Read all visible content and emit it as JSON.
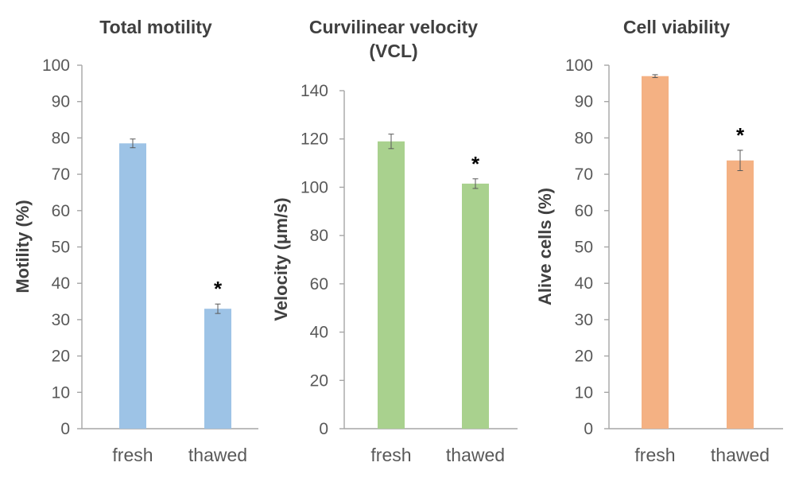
{
  "chart_data": [
    {
      "type": "bar",
      "title_lines": [
        "Total motility"
      ],
      "ylabel": "Motility (%)",
      "categories": [
        "fresh",
        "thawed"
      ],
      "values": [
        78.5,
        33.0
      ],
      "errors": [
        1.2,
        1.3
      ],
      "significance": [
        "",
        "*"
      ],
      "ylim": [
        0,
        100
      ],
      "yticks": [
        0,
        10,
        20,
        30,
        40,
        50,
        60,
        70,
        80,
        90,
        100
      ],
      "color": "#9dc3e6",
      "grid": false
    },
    {
      "type": "bar",
      "title_lines": [
        "Curvilinear velocity",
        "(VCL)"
      ],
      "ylabel": "Velocity (μm/s)",
      "categories": [
        "fresh",
        "thawed"
      ],
      "values": [
        119,
        101.5
      ],
      "errors": [
        3,
        2
      ],
      "significance": [
        "",
        "*"
      ],
      "ylim": [
        0,
        140
      ],
      "yticks": [
        0,
        20,
        40,
        60,
        80,
        100,
        120,
        140
      ],
      "color": "#a9d18e",
      "grid": false
    },
    {
      "type": "bar",
      "title_lines": [
        "Cell viability"
      ],
      "ylabel": "Alive cells (%)",
      "categories": [
        "fresh",
        "thawed"
      ],
      "values": [
        97,
        73.8
      ],
      "errors": [
        0.4,
        2.8
      ],
      "significance": [
        "",
        "*"
      ],
      "ylim": [
        0,
        100
      ],
      "yticks": [
        0,
        10,
        20,
        30,
        40,
        50,
        60,
        70,
        80,
        90,
        100
      ],
      "color": "#f4b183",
      "grid": false
    }
  ]
}
